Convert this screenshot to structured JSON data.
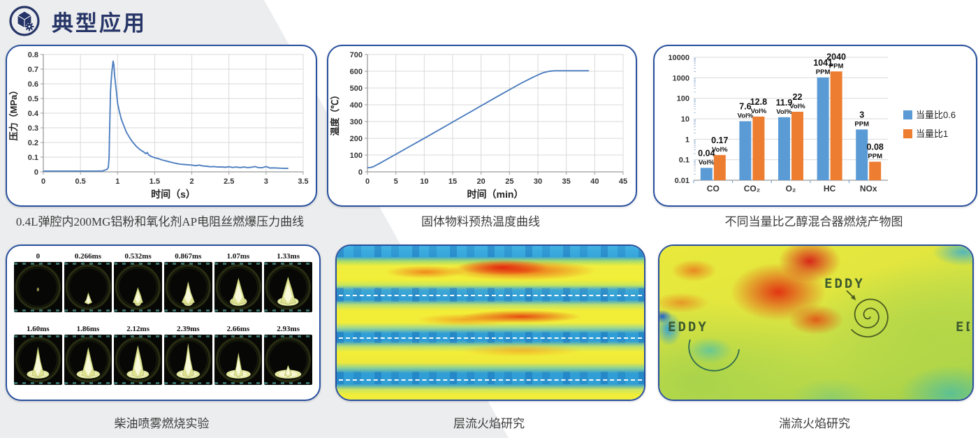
{
  "header": {
    "title": "典型应用",
    "icon": "cube-gear-badge-icon"
  },
  "colors": {
    "accent_navy": "#263567",
    "card_border": "#28509e",
    "line_blue": "#4d7ebf",
    "bar_blue": "#5b9bd5",
    "bar_orange": "#ed7d31",
    "grid": "#d9d9d9",
    "axis": "#9a9a9a",
    "caption_text": "#3c3c3c"
  },
  "chart_data": [
    {
      "type": "line",
      "title": "0.4L弹腔内200MG铝粉和氧化剂AP电阻丝燃爆压力曲线",
      "xlabel": "时间（s）",
      "ylabel": "压力（MPa）",
      "xlim": [
        0,
        3.5
      ],
      "ylim": [
        0,
        0.8
      ],
      "xticks": [
        "0",
        "0.5",
        "1",
        "1.5",
        "2",
        "2.5",
        "3",
        "3.5"
      ],
      "yticks": [
        "0",
        "0.1",
        "0.2",
        "0.3",
        "0.4",
        "0.5",
        "0.6",
        "0.7",
        "0.8"
      ],
      "grid": true,
      "peak": 0.755,
      "points": [
        [
          0,
          0.005
        ],
        [
          0.4,
          0.005
        ],
        [
          0.7,
          0.005
        ],
        [
          0.8,
          0.006
        ],
        [
          0.83,
          0.012
        ],
        [
          0.86,
          0.018
        ],
        [
          0.875,
          0.03
        ],
        [
          0.885,
          0.09
        ],
        [
          0.895,
          0.32
        ],
        [
          0.905,
          0.55
        ],
        [
          0.915,
          0.63
        ],
        [
          0.925,
          0.69
        ],
        [
          0.94,
          0.755
        ],
        [
          0.95,
          0.73
        ],
        [
          0.96,
          0.66
        ],
        [
          0.975,
          0.59
        ],
        [
          0.99,
          0.52
        ],
        [
          1.0,
          0.47
        ],
        [
          1.02,
          0.42
        ],
        [
          1.05,
          0.36
        ],
        [
          1.08,
          0.32
        ],
        [
          1.12,
          0.27
        ],
        [
          1.16,
          0.235
        ],
        [
          1.2,
          0.205
        ],
        [
          1.25,
          0.175
        ],
        [
          1.3,
          0.152
        ],
        [
          1.35,
          0.136
        ],
        [
          1.38,
          0.124
        ],
        [
          1.4,
          0.132
        ],
        [
          1.42,
          0.115
        ],
        [
          1.45,
          0.106
        ],
        [
          1.5,
          0.096
        ],
        [
          1.55,
          0.09
        ],
        [
          1.6,
          0.081
        ],
        [
          1.65,
          0.075
        ],
        [
          1.7,
          0.068
        ],
        [
          1.75,
          0.062
        ],
        [
          1.8,
          0.056
        ],
        [
          1.85,
          0.052
        ],
        [
          1.9,
          0.05
        ],
        [
          1.95,
          0.048
        ],
        [
          2.0,
          0.046
        ],
        [
          2.05,
          0.042
        ],
        [
          2.1,
          0.046
        ],
        [
          2.15,
          0.04
        ],
        [
          2.2,
          0.038
        ],
        [
          2.25,
          0.035
        ],
        [
          2.3,
          0.036
        ],
        [
          2.35,
          0.033
        ],
        [
          2.4,
          0.034
        ],
        [
          2.45,
          0.031
        ],
        [
          2.5,
          0.035
        ],
        [
          2.55,
          0.03
        ],
        [
          2.6,
          0.033
        ],
        [
          2.65,
          0.029
        ],
        [
          2.7,
          0.033
        ],
        [
          2.75,
          0.029
        ],
        [
          2.8,
          0.031
        ],
        [
          2.85,
          0.036
        ],
        [
          2.9,
          0.028
        ],
        [
          2.95,
          0.028
        ],
        [
          3.0,
          0.036
        ],
        [
          3.05,
          0.026
        ],
        [
          3.1,
          0.027
        ],
        [
          3.2,
          0.025
        ],
        [
          3.3,
          0.024
        ]
      ]
    },
    {
      "type": "line",
      "title": "固体物料预热温度曲线",
      "xlabel": "时间（min）",
      "ylabel": "温度（℃）",
      "xlim": [
        0,
        45
      ],
      "ylim": [
        0,
        700
      ],
      "xticks": [
        "0",
        "5",
        "10",
        "15",
        "20",
        "25",
        "30",
        "35",
        "40",
        "45"
      ],
      "yticks": [
        "0",
        "100",
        "200",
        "300",
        "400",
        "500",
        "600",
        "700"
      ],
      "grid": true,
      "points": [
        [
          0,
          25
        ],
        [
          0.5,
          26
        ],
        [
          1,
          30
        ],
        [
          2,
          48
        ],
        [
          3,
          67
        ],
        [
          5,
          105
        ],
        [
          7,
          143
        ],
        [
          10,
          200
        ],
        [
          13,
          258
        ],
        [
          15,
          297
        ],
        [
          18,
          355
        ],
        [
          20,
          394
        ],
        [
          23,
          452
        ],
        [
          25,
          490
        ],
        [
          27,
          528
        ],
        [
          29,
          562
        ],
        [
          30,
          578
        ],
        [
          31,
          592
        ],
        [
          32,
          600
        ],
        [
          33,
          603
        ],
        [
          35,
          603
        ],
        [
          37,
          603
        ],
        [
          39,
          603
        ]
      ]
    },
    {
      "type": "bar",
      "title": "不同当量比乙醇混合器燃烧产物图",
      "scale": "log",
      "ylim": [
        0.01,
        10000
      ],
      "yticks": [
        "10000",
        "1000",
        "100",
        "10",
        "1",
        "0.1",
        "0.01"
      ],
      "categories": [
        "CO",
        "CO₂",
        "O₂",
        "HC",
        "NOx"
      ],
      "units": [
        "Vol%",
        "Vol%",
        "Vol%",
        "PPM",
        "PPM"
      ],
      "legend_position": "right",
      "series": [
        {
          "name": "当量比0.6",
          "color": "#5b9bd5",
          "values": [
            "0.04",
            "7.6",
            "11.9",
            "1041",
            "3"
          ]
        },
        {
          "name": "当量比1",
          "color": "#ed7d31",
          "values": [
            "0.17",
            "12.8",
            "22",
            "2040",
            "0.08"
          ]
        }
      ]
    }
  ],
  "panels": {
    "diesel": {
      "caption": "柴油喷雾燃烧实验",
      "frames": [
        {
          "t": "0",
          "h": 0.07,
          "w": 0.05,
          "pool": 0
        },
        {
          "t": "0.266ms",
          "h": 0.3,
          "w": 0.16,
          "pool": 0
        },
        {
          "t": "0.532ms",
          "h": 0.44,
          "w": 0.21,
          "pool": 0.14
        },
        {
          "t": "0.867ms",
          "h": 0.6,
          "w": 0.27,
          "pool": 0.2
        },
        {
          "t": "1.07ms",
          "h": 0.7,
          "w": 0.3,
          "pool": 0.32
        },
        {
          "t": "1.33ms",
          "h": 0.73,
          "w": 0.31,
          "pool": 0.4
        },
        {
          "t": "1.60ms",
          "h": 0.8,
          "w": 0.26,
          "pool": 0.42
        },
        {
          "t": "1.86ms",
          "h": 0.79,
          "w": 0.28,
          "pool": 0.44
        },
        {
          "t": "2.12ms",
          "h": 0.84,
          "w": 0.26,
          "pool": 0.42
        },
        {
          "t": "2.39ms",
          "h": 0.9,
          "w": 0.24,
          "pool": 0.44
        },
        {
          "t": "2.66ms",
          "h": 0.64,
          "w": 0.18,
          "pool": 0.46
        },
        {
          "t": "2.93ms",
          "h": 0.3,
          "w": 0.15,
          "pool": 0.5
        }
      ]
    },
    "laminar": {
      "caption": "层流火焰研究",
      "dashed_lines": 3
    },
    "turbulent": {
      "caption": "湍流火焰研究",
      "eddy_label_1": "EDDY",
      "eddy_label_2": "EDDY",
      "eddy_label_3": "ED"
    }
  }
}
